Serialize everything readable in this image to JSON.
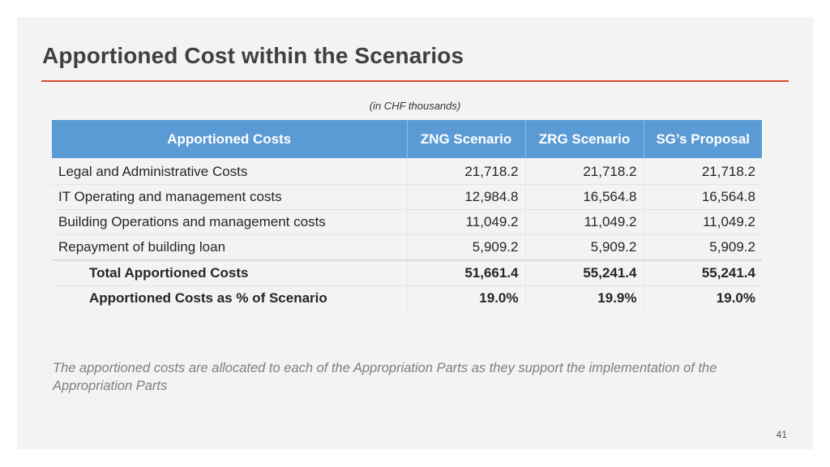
{
  "slide": {
    "title": "Apportioned Cost within the Scenarios",
    "subtitle": "(in CHF thousands)",
    "footnote": "The apportioned costs are allocated to each of the Appropriation Parts as they support the implementation of the Appropriation Parts",
    "page_number": "41",
    "accent_color": "#dc4b2b",
    "header_color": "#5b9bd5"
  },
  "table": {
    "headers": [
      "Apportioned Costs",
      "ZNG Scenario",
      "ZRG Scenario",
      "SG’s Proposal"
    ],
    "rows": [
      {
        "label": "Legal and Administrative Costs",
        "values": [
          "21,718.2",
          "21,718.2",
          "21,718.2"
        ]
      },
      {
        "label": "IT Operating and management costs",
        "values": [
          "12,984.8",
          "16,564.8",
          "16,564.8"
        ]
      },
      {
        "label": "Building Operations and management costs",
        "values": [
          "11,049.2",
          "11,049.2",
          "11,049.2"
        ]
      },
      {
        "label": "Repayment of building loan",
        "values": [
          "5,909.2",
          "5,909.2",
          "5,909.2"
        ]
      },
      {
        "label": "Total Apportioned Costs",
        "values": [
          "51,661.4",
          "55,241.4",
          "55,241.4"
        ]
      },
      {
        "label": "Apportioned Costs as % of Scenario",
        "values": [
          "19.0%",
          "19.9%",
          "19.0%"
        ]
      }
    ]
  }
}
